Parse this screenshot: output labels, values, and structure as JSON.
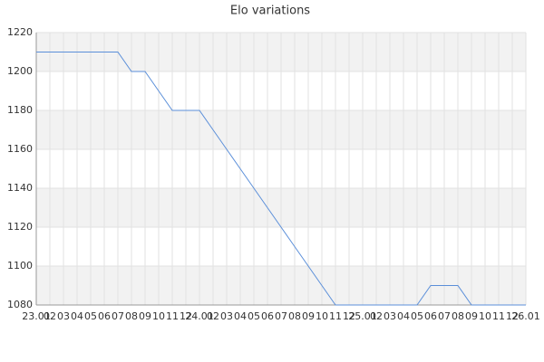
{
  "chart_data": {
    "type": "line",
    "title": "Elo variations",
    "categories": [
      "23.01",
      "02",
      "03",
      "04",
      "05",
      "06",
      "07",
      "08",
      "09",
      "10",
      "11",
      "12",
      "24.01",
      "02",
      "03",
      "04",
      "05",
      "06",
      "07",
      "08",
      "09",
      "10",
      "11",
      "12",
      "25.01",
      "02",
      "03",
      "04",
      "05",
      "06",
      "07",
      "08",
      "09",
      "10",
      "11",
      "12",
      "26.01"
    ],
    "series": [
      {
        "name": "Elo",
        "color": "#5b8fd9",
        "values": [
          1210,
          1210,
          1210,
          1210,
          1210,
          1210,
          1210,
          1200,
          1200,
          1190,
          1180,
          1180,
          1180,
          1170,
          1160,
          1150,
          1140,
          1130,
          1120,
          1110,
          1100,
          1090,
          1080,
          1080,
          1080,
          1080,
          1080,
          1080,
          1080,
          1090,
          1090,
          1090,
          1080,
          1080,
          1080,
          1080,
          1080
        ]
      }
    ],
    "ylim": [
      1080,
      1220
    ],
    "yticks": [
      1080,
      1100,
      1120,
      1140,
      1160,
      1180,
      1200,
      1220
    ],
    "grid": true
  }
}
